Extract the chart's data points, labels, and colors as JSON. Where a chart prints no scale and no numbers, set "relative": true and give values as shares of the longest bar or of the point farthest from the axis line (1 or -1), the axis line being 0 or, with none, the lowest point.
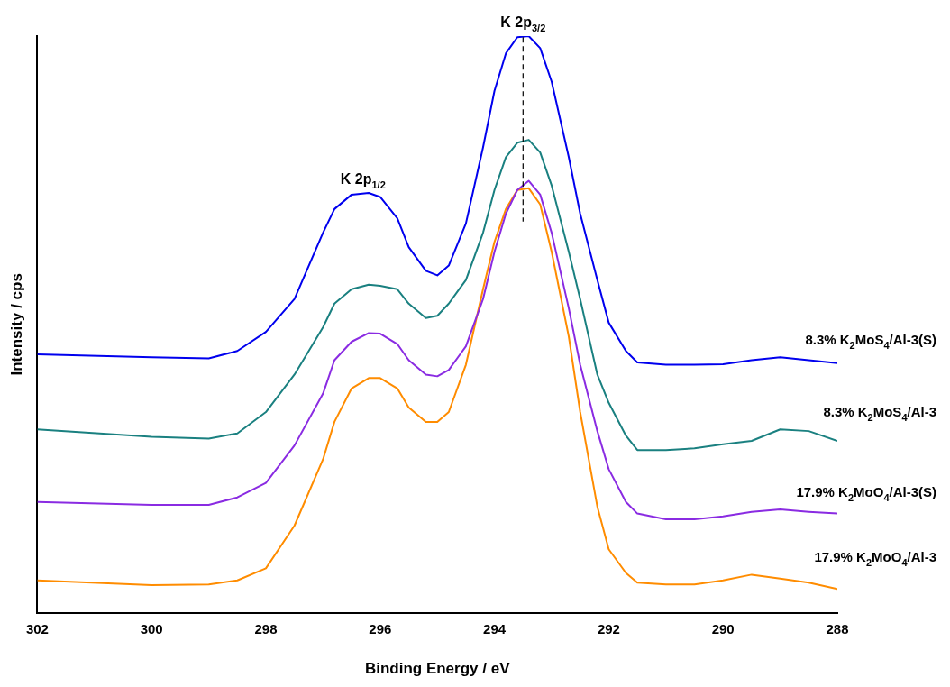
{
  "chart_data": {
    "type": "line",
    "relative": true,
    "xlabel": "Binding Energy / eV",
    "ylabel": "Intensity / cps",
    "xlim": [
      302,
      288
    ],
    "xticks": [
      302,
      300,
      298,
      296,
      294,
      292,
      290,
      288
    ],
    "legend": false,
    "grid": false,
    "marker": "none",
    "line_style": "solid",
    "x": [
      302,
      300,
      299,
      298.5,
      298,
      297.5,
      297,
      296.8,
      296.5,
      296.2,
      296,
      295.7,
      295.5,
      295.2,
      295,
      294.8,
      294.5,
      294.2,
      294,
      293.8,
      293.6,
      293.4,
      293.2,
      293,
      292.7,
      292.5,
      292.2,
      292,
      291.7,
      291.5,
      291,
      290.5,
      290,
      289.5,
      289,
      288.5,
      288
    ],
    "series": [
      {
        "name": "8.3% K$_{2}$MoS$_{4}$/Al-3(S)",
        "color": "#0000ee",
        "values": [
          0.448,
          0.443,
          0.441,
          0.454,
          0.487,
          0.544,
          0.659,
          0.7,
          0.725,
          0.728,
          0.721,
          0.684,
          0.634,
          0.593,
          0.585,
          0.602,
          0.675,
          0.807,
          0.905,
          0.97,
          0.998,
          1,
          0.979,
          0.921,
          0.79,
          0.692,
          0.577,
          0.503,
          0.454,
          0.434,
          0.43,
          0.43,
          0.431,
          0.438,
          0.443,
          0.438,
          0.433
        ]
      },
      {
        "name": "8.3% K$_{2}$MoS$_{4}$/Al-3",
        "color": "#1a8080",
        "values": [
          0.318,
          0.305,
          0.302,
          0.311,
          0.348,
          0.413,
          0.495,
          0.536,
          0.561,
          0.569,
          0.567,
          0.561,
          0.536,
          0.511,
          0.515,
          0.536,
          0.577,
          0.659,
          0.733,
          0.79,
          0.815,
          0.82,
          0.798,
          0.741,
          0.626,
          0.544,
          0.413,
          0.364,
          0.307,
          0.282,
          0.282,
          0.285,
          0.292,
          0.298,
          0.318,
          0.315,
          0.298
        ]
      },
      {
        "name": "17.9% K$_{2}$MoO$_{4}$/Al-3(S)",
        "color": "#8a2be2",
        "values": [
          0.192,
          0.187,
          0.187,
          0.2,
          0.225,
          0.29,
          0.38,
          0.438,
          0.47,
          0.485,
          0.484,
          0.466,
          0.438,
          0.413,
          0.41,
          0.421,
          0.462,
          0.544,
          0.626,
          0.692,
          0.733,
          0.749,
          0.725,
          0.659,
          0.528,
          0.43,
          0.315,
          0.249,
          0.192,
          0.172,
          0.162,
          0.162,
          0.167,
          0.175,
          0.179,
          0.175,
          0.172
        ]
      },
      {
        "name": "17.9% K$_{2}$MoO$_{4}$/Al-3",
        "color": "#ff8c00",
        "values": [
          0.056,
          0.048,
          0.049,
          0.056,
          0.077,
          0.151,
          0.266,
          0.331,
          0.389,
          0.407,
          0.407,
          0.389,
          0.356,
          0.331,
          0.331,
          0.348,
          0.43,
          0.561,
          0.643,
          0.7,
          0.733,
          0.736,
          0.708,
          0.626,
          0.479,
          0.348,
          0.184,
          0.11,
          0.069,
          0.052,
          0.049,
          0.049,
          0.056,
          0.066,
          0.059,
          0.052,
          0.041
        ]
      }
    ],
    "annotations": [
      {
        "text": "K 2p$_{1/2}$",
        "x": 296.3,
        "y": 0.728
      },
      {
        "text": "K 2p$_{3/2}$",
        "x": 293.5,
        "y": 1
      }
    ],
    "ref_lines": [
      {
        "axis": "x",
        "value": 293.5,
        "line_style": "dashed",
        "color": "#000000"
      }
    ]
  }
}
